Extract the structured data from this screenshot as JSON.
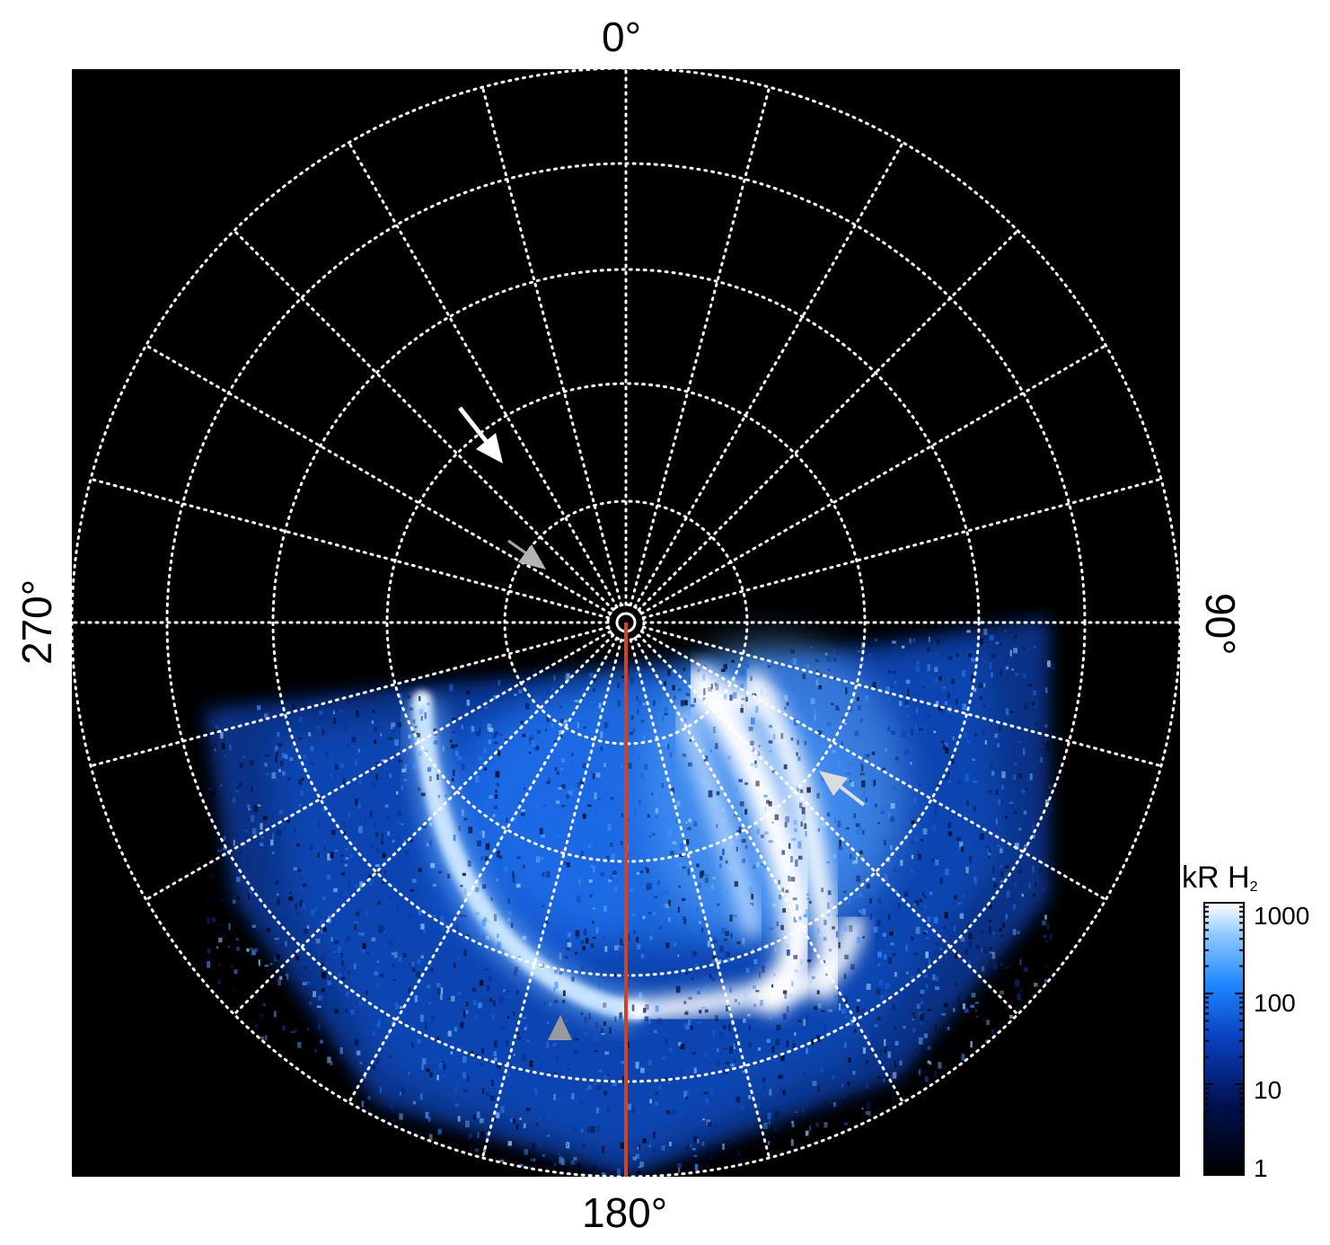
{
  "axis_labels": {
    "top": "0°",
    "right": "90°",
    "bottom": "180°",
    "left": "270°"
  },
  "colorbar": {
    "title_main": "kR H",
    "title_sub": "2",
    "ticks": [
      "1000",
      "100",
      "10",
      "1"
    ],
    "scale": "log",
    "range": [
      1,
      1000
    ]
  },
  "colors": {
    "background_map": "#000000",
    "grid": "#ffffff",
    "meridian_line": "#d2421f",
    "aurora_low": "#001a66",
    "aurora_mid": "#1a7dff",
    "aurora_high": "#ffffff",
    "arrow_white": "#ffffff",
    "arrow_gray": "#b0b0b0"
  },
  "annotations": {
    "arrows": [
      {
        "name": "white-arrow",
        "color": "white"
      },
      {
        "name": "gray-arrow-upper-left",
        "color": "gray"
      },
      {
        "name": "gray-arrow-right",
        "color": "lightgray"
      },
      {
        "name": "gray-arrow-bottom",
        "color": "gray"
      }
    ]
  }
}
